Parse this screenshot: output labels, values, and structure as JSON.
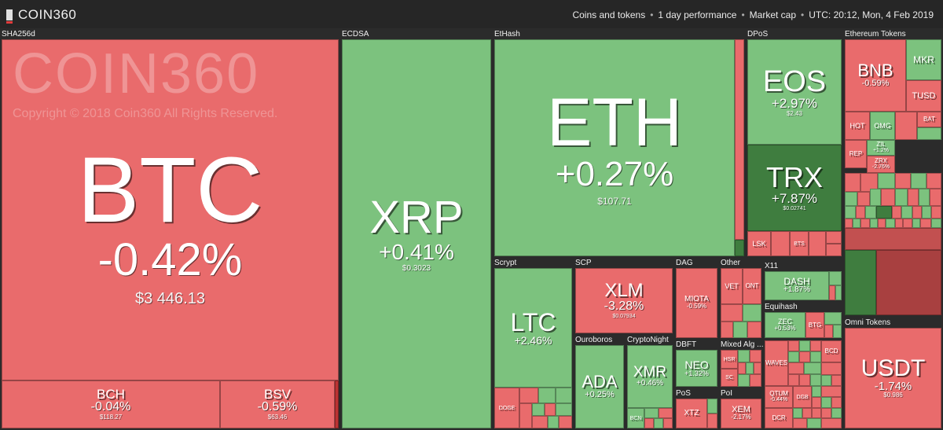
{
  "header": {
    "logo_text": "COIN360",
    "filter_coins": "Coins and tokens",
    "filter_period": "1 day performance",
    "filter_metric": "Market cap",
    "timestamp": "UTC: 20:12, Mon, 4 Feb 2019",
    "separator": "•"
  },
  "watermark": {
    "logo": "COIN360",
    "copyright": "Copyright © 2018 Coin360 All Rights Reserved."
  },
  "groups": {
    "sha256d": "SHA256d",
    "ecdsa": "ECDSA",
    "ethash": "EtHash",
    "dpos": "DPoS",
    "ethereum_tokens": "Ethereum Tokens",
    "scrypt": "Scrypt",
    "scp": "SCP",
    "dag": "DAG",
    "other": "Other",
    "x11": "X11",
    "equihash": "Equihash",
    "ouroboros": "Ouroboros",
    "cryptonight": "CryptoNight",
    "dbft": "DBFT",
    "mixed_alg": "Mixed Alg ...",
    "pos": "PoS",
    "pol": "PoI",
    "omni_tokens": "Omni Tokens"
  },
  "coins": {
    "btc": {
      "symbol": "BTC",
      "change": "-0.42%",
      "price": "$3 446.13"
    },
    "bch": {
      "symbol": "BCH",
      "change": "-0.04%",
      "price": "$118.27"
    },
    "bsv": {
      "symbol": "BSV",
      "change": "-0.59%",
      "price": "$63.46"
    },
    "xrp": {
      "symbol": "XRP",
      "change": "+0.41%",
      "price": "$0.3023"
    },
    "eth": {
      "symbol": "ETH",
      "change": "+0.27%",
      "price": "$107.71"
    },
    "eos": {
      "symbol": "EOS",
      "change": "+2.97%",
      "price": "$2.43"
    },
    "trx": {
      "symbol": "TRX",
      "change": "+7.87%",
      "price": "$0.02741"
    },
    "lsk": {
      "symbol": "LSK",
      "change": "",
      "price": ""
    },
    "bts": {
      "symbol": "BTS",
      "change": "",
      "price": ""
    },
    "bnb": {
      "symbol": "BNB",
      "change": "-0.59%",
      "price": ""
    },
    "mkr": {
      "symbol": "MKR",
      "change": "",
      "price": ""
    },
    "tusd": {
      "symbol": "TUSD",
      "change": "",
      "price": ""
    },
    "hot": {
      "symbol": "HOT",
      "change": "",
      "price": ""
    },
    "omg": {
      "symbol": "OMG",
      "change": "",
      "price": ""
    },
    "bat": {
      "symbol": "BAT",
      "change": "",
      "price": ""
    },
    "zil": {
      "symbol": "ZIL",
      "change": "+1.2%",
      "price": ""
    },
    "zrx": {
      "symbol": "ZRX",
      "change": "-2.76%",
      "price": ""
    },
    "rep": {
      "symbol": "REP",
      "change": "",
      "price": ""
    },
    "ltc": {
      "symbol": "LTC",
      "change": "+2.46%",
      "price": ""
    },
    "doge": {
      "symbol": "DOGE",
      "change": "",
      "price": ""
    },
    "xlm": {
      "symbol": "XLM",
      "change": "-3.28%",
      "price": "$0.07934"
    },
    "miota": {
      "symbol": "MIOTA",
      "change": "-0.59%",
      "price": ""
    },
    "vet": {
      "symbol": "VET",
      "change": "",
      "price": ""
    },
    "ont": {
      "symbol": "ONT",
      "change": "",
      "price": ""
    },
    "dash": {
      "symbol": "DASH",
      "change": "+1.87%",
      "price": ""
    },
    "zec": {
      "symbol": "ZEC",
      "change": "+0.53%",
      "price": ""
    },
    "btg": {
      "symbol": "BTG",
      "change": "",
      "price": ""
    },
    "ada": {
      "symbol": "ADA",
      "change": "+0.25%",
      "price": ""
    },
    "xmr": {
      "symbol": "XMR",
      "change": "+0.46%",
      "price": ""
    },
    "bcn": {
      "symbol": "BCN",
      "change": "",
      "price": ""
    },
    "neo": {
      "symbol": "NEO",
      "change": "+1.32%",
      "price": ""
    },
    "hsr": {
      "symbol": "HSR",
      "change": "",
      "price": ""
    },
    "sc": {
      "symbol": "SC",
      "change": "",
      "price": ""
    },
    "waves": {
      "symbol": "WAVES",
      "change": "",
      "price": ""
    },
    "qtum": {
      "symbol": "QTUM",
      "change": "-0.44%",
      "price": ""
    },
    "dcr": {
      "symbol": "DCR",
      "change": "",
      "price": ""
    },
    "dgb": {
      "symbol": "DGB",
      "change": "",
      "price": ""
    },
    "bcd": {
      "symbol": "BCD",
      "change": "",
      "price": ""
    },
    "xtz": {
      "symbol": "XTZ",
      "change": "",
      "price": ""
    },
    "xem": {
      "symbol": "XEM",
      "change": "-2.17%",
      "price": ""
    },
    "usdt": {
      "symbol": "USDT",
      "change": "-1.74%",
      "price": "$0.986"
    }
  },
  "colors": {
    "negative": "#e96b6c",
    "positive": "#7cc27e",
    "strong_positive": "#3f7d3f",
    "background": "#2b2b2b"
  }
}
